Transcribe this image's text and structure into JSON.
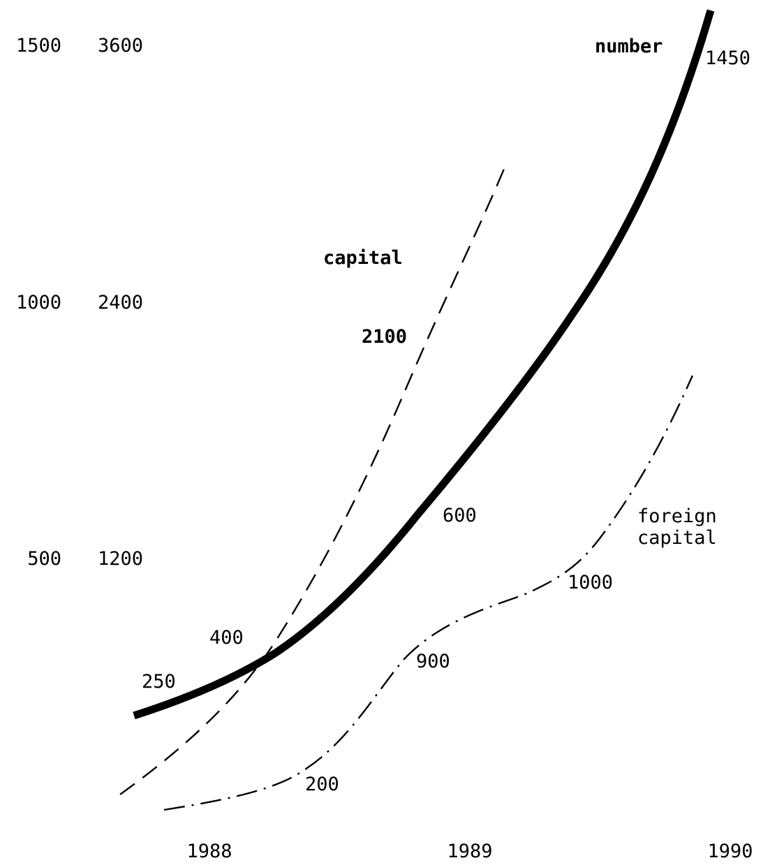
{
  "chart_data": {
    "type": "line",
    "x_ticks": [
      "1988",
      "1989",
      "1990"
    ],
    "y_axis_left": {
      "ticks": [
        "1500",
        "1000",
        "500"
      ]
    },
    "y_axis_right": {
      "ticks": [
        "3600",
        "2400",
        "1200"
      ]
    },
    "series": [
      {
        "name": "number",
        "style": "thick-solid",
        "color": "#000000",
        "points": [
          {
            "x": 1987.7,
            "y": 250,
            "label": "250"
          },
          {
            "x": 1988.2,
            "y": 400,
            "label": "400"
          },
          {
            "x": 1988.9,
            "y": 600,
            "label": "600"
          },
          {
            "x": 1990.0,
            "y": 1450,
            "label": "1450"
          }
        ]
      },
      {
        "name": "capital",
        "style": "dashed",
        "color": "#000000",
        "points": [
          {
            "x": 1987.6,
            "y": 200
          },
          {
            "x": 1988.0,
            "y": 700
          },
          {
            "x": 1988.3,
            "y": 1400
          },
          {
            "x": 1988.6,
            "y": 2100,
            "label": "2100"
          },
          {
            "x": 1988.7,
            "y": 3000
          }
        ]
      },
      {
        "name": "foreign capital",
        "name_lines": [
          "foreign",
          "capital"
        ],
        "style": "dash-dot",
        "color": "#000000",
        "points": [
          {
            "x": 1987.8,
            "y": 200
          },
          {
            "x": 1988.4,
            "y": 200,
            "label": "200"
          },
          {
            "x": 1988.8,
            "y": 900,
            "label": "900"
          },
          {
            "x": 1989.4,
            "y": 1000,
            "label": "1000"
          },
          {
            "x": 1990.0,
            "y": 2000
          }
        ]
      }
    ]
  }
}
